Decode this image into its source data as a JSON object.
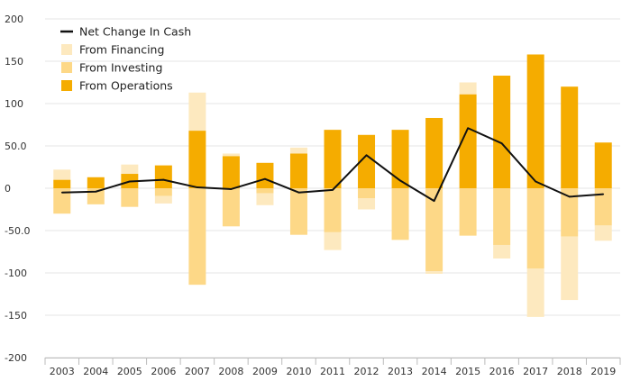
{
  "chart_data": {
    "type": "bar",
    "stacked": true,
    "title": "",
    "xlabel": "",
    "ylabel": "",
    "ylim": [
      -200,
      200
    ],
    "yticks": [
      {
        "value": 200,
        "label": "200"
      },
      {
        "value": 150,
        "label": "150"
      },
      {
        "value": 100,
        "label": "100"
      },
      {
        "value": 50,
        "label": "50.0"
      },
      {
        "value": 0,
        "label": "0"
      },
      {
        "value": -50,
        "label": "-50.0"
      },
      {
        "value": -100,
        "label": "-100"
      },
      {
        "value": -150,
        "label": "-150"
      },
      {
        "value": -200,
        "label": "-200"
      }
    ],
    "grid": true,
    "legend_position": "top-left",
    "categories": [
      "2003",
      "2004",
      "2005",
      "2006",
      "2007",
      "2008",
      "2009",
      "2010",
      "2011",
      "2012",
      "2013",
      "2014",
      "2015",
      "2016",
      "2017",
      "2018",
      "2019"
    ],
    "series": [
      {
        "name": "From Operations",
        "type": "bar",
        "color": "#f5ac00",
        "values": [
          10,
          13,
          17,
          27,
          68,
          38,
          30,
          41,
          69,
          63,
          69,
          83,
          111,
          133,
          158,
          120,
          54
        ]
      },
      {
        "name": "From Investing",
        "type": "bar",
        "color": "#fdd887",
        "values": [
          -30,
          -19,
          -22,
          -9,
          -114,
          -45,
          -6,
          -55,
          -52,
          -12,
          -61,
          -98,
          -56,
          -67,
          -95,
          -57,
          -44
        ]
      },
      {
        "name": "From Financing",
        "type": "bar",
        "color": "#fde9bf",
        "values": [
          12,
          0,
          11,
          0,
          45,
          3,
          0,
          7,
          0,
          0,
          0,
          0,
          14,
          0,
          0,
          0,
          0
        ],
        "negative_values": [
          0,
          0,
          0,
          -9,
          0,
          0,
          -14,
          0,
          -21,
          -13,
          0,
          -3,
          0,
          -16,
          -57,
          -75,
          -18
        ]
      },
      {
        "name": "Net Change In Cash",
        "type": "line",
        "color": "#111111",
        "values": [
          -5,
          -4,
          8,
          10,
          1,
          -1,
          11,
          -5,
          -2,
          39,
          9,
          -15,
          71,
          53,
          8,
          -10,
          -7
        ]
      }
    ],
    "legend": [
      {
        "name": "Net Change In Cash",
        "symbol": "line",
        "color": "#111111"
      },
      {
        "name": "From Financing",
        "symbol": "square",
        "color": "#fde9bf"
      },
      {
        "name": "From Investing",
        "symbol": "square",
        "color": "#fdd887"
      },
      {
        "name": "From Operations",
        "symbol": "square",
        "color": "#f5ac00"
      }
    ]
  }
}
